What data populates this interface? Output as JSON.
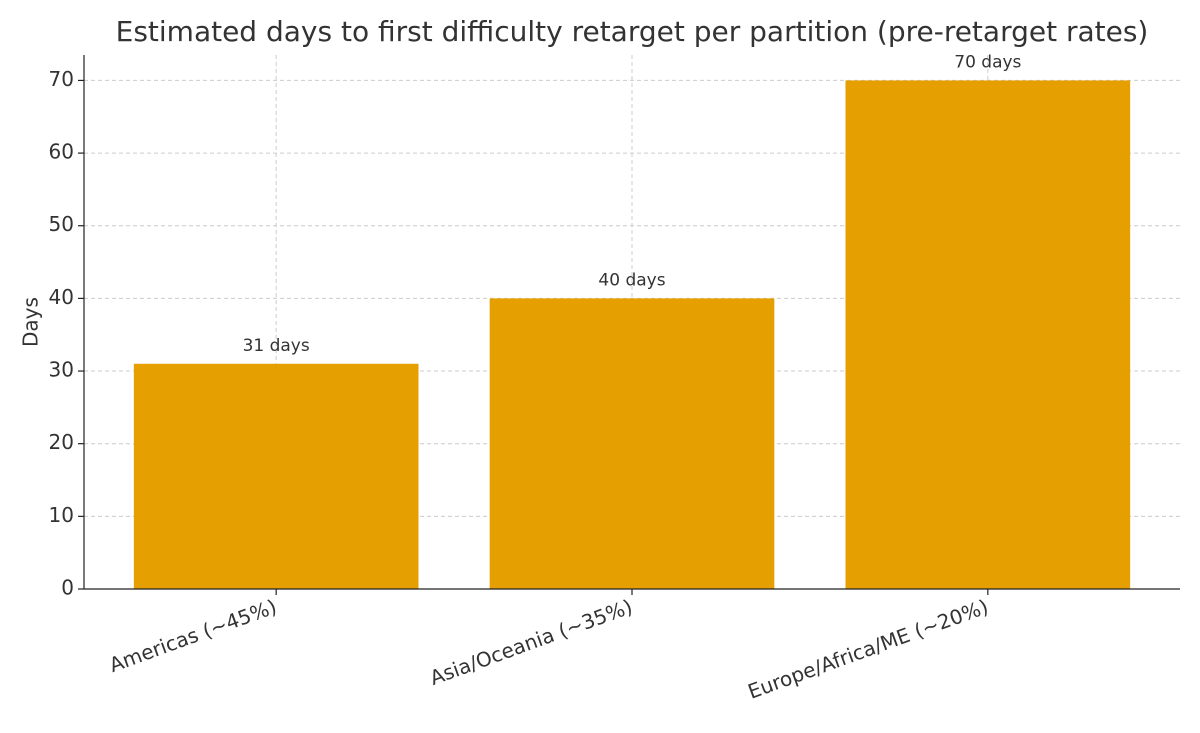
{
  "chart_data": {
    "type": "bar",
    "title": "Estimated days to first difficulty retarget per partition (pre-retarget rates)",
    "y_label": "Days",
    "categories": [
      "Americas (~45%)",
      "Asia/Oceania (~35%)",
      "Europe/Africa/ME (~20%)"
    ],
    "values": [
      31,
      40,
      70
    ],
    "value_labels": [
      "31 days",
      "40 days",
      "70 days"
    ],
    "color": "#e69f00",
    "ylim": [
      0,
      73.5
    ],
    "yticks": [
      0,
      10,
      20,
      30,
      40,
      50,
      60,
      70
    ],
    "grid": true
  }
}
